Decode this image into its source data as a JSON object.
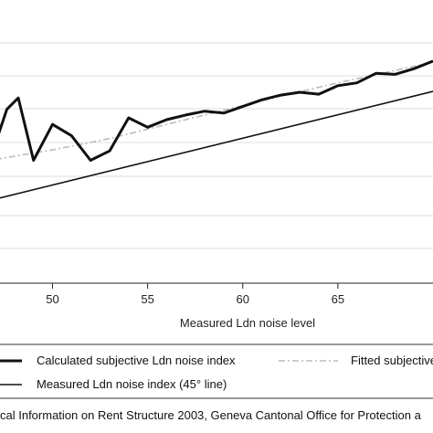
{
  "chart_data": {
    "type": "line",
    "xlabel": "Measured Ldn noise level",
    "xlim": [
      47,
      70
    ],
    "ylim": [
      46,
      75
    ],
    "x_ticks": [
      50,
      55,
      60,
      65
    ],
    "grid": "horizontal",
    "series": [
      {
        "name": "Calculated subjective Ldn noise index",
        "style": "thick-solid",
        "color": "#111111",
        "x": [
          47,
          47.6,
          48.2,
          49,
          50,
          51,
          52,
          53,
          54,
          55,
          56,
          57,
          58,
          59,
          60,
          61,
          62,
          63,
          64,
          65,
          66,
          67,
          68,
          69,
          70
        ],
        "y": [
          60.8,
          64.4,
          65.6,
          59,
          62.8,
          61.6,
          59,
          60,
          63.5,
          62.5,
          63.3,
          63.8,
          64.2,
          64,
          64.7,
          65.4,
          65.9,
          66.2,
          66,
          66.9,
          67.2,
          68.2,
          68.1,
          68.7,
          69.5
        ]
      },
      {
        "name": "Fitted subjective",
        "style": "dash-dot",
        "color": "#bbbbbb",
        "x": [
          47,
          50,
          53,
          56,
          59,
          62,
          65,
          68,
          70
        ],
        "y": [
          59.1,
          60.1,
          61.3,
          62.8,
          64.3,
          65.8,
          67.2,
          68.5,
          69.4
        ]
      },
      {
        "name": "Measured Ldn noise index (45° line)",
        "style": "thin-solid",
        "color": "#111111",
        "x": [
          47,
          70
        ],
        "y": [
          54.9,
          66.3
        ]
      }
    ],
    "legend": {
      "placement": "bottom",
      "entries": [
        "Calculated subjective Ldn noise index",
        "Fitted subjective",
        "Measured Ldn noise index (45° line)"
      ]
    },
    "source_note": "cal Information on Rent Structure 2003, Geneva Cantonal Office for Protection a"
  }
}
